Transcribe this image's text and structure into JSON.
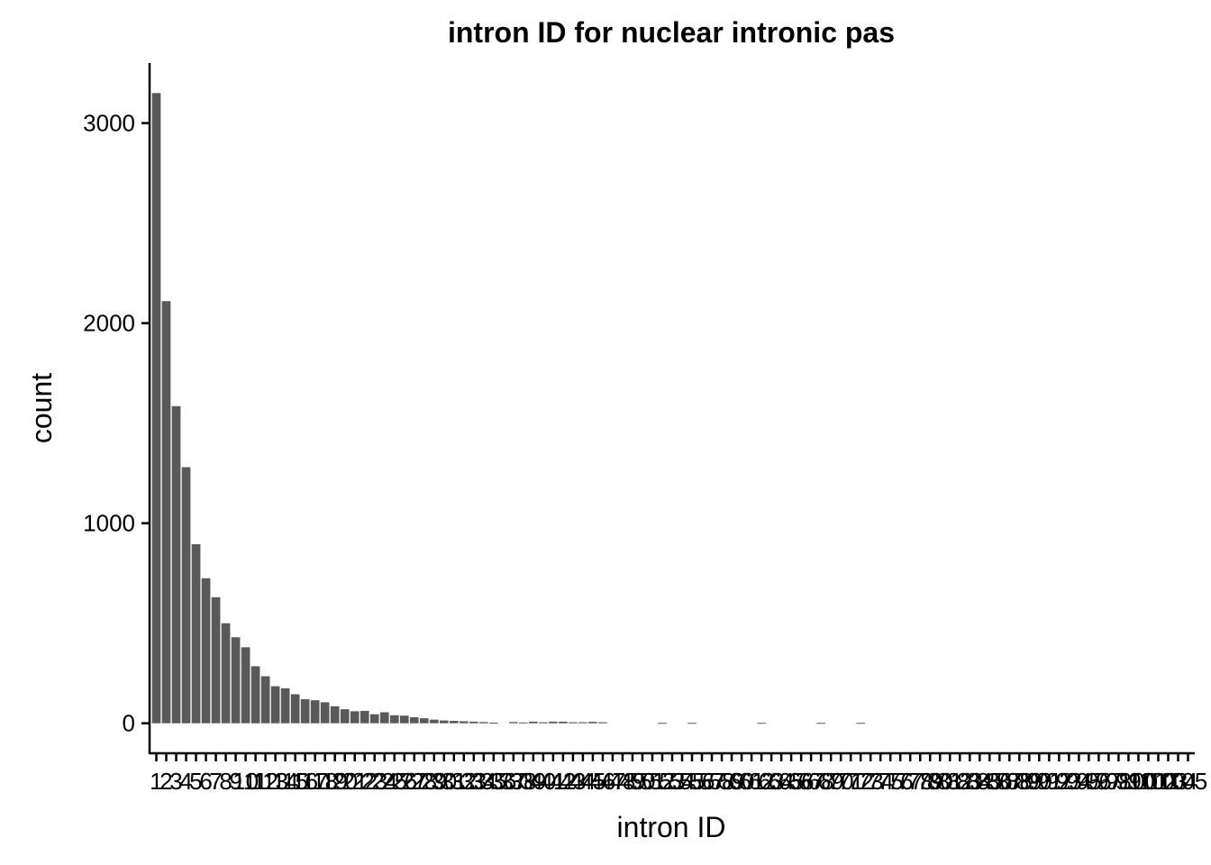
{
  "chart_data": {
    "type": "bar",
    "title": "intron ID for nuclear intronic pas",
    "xlabel": "intron ID",
    "ylabel": "count",
    "ylim": [
      -150,
      3300
    ],
    "yticks": [
      0,
      1000,
      2000,
      3000
    ],
    "categories": [
      "1",
      "2",
      "3",
      "4",
      "5",
      "6",
      "7",
      "8",
      "9",
      "10",
      "11",
      "12",
      "13",
      "14",
      "15",
      "16",
      "17",
      "18",
      "19",
      "20",
      "21",
      "22",
      "23",
      "24",
      "25",
      "26",
      "27",
      "28",
      "29",
      "30",
      "31",
      "32",
      "33",
      "34",
      "35",
      "36",
      "37",
      "38",
      "39",
      "40",
      "41",
      "42",
      "43",
      "44",
      "45",
      "46",
      "47",
      "48",
      "49",
      "50",
      "51",
      "52",
      "53",
      "54",
      "55",
      "56",
      "57",
      "58",
      "59",
      "60",
      "61",
      "62",
      "63",
      "64",
      "65",
      "66",
      "67",
      "68",
      "69",
      "70",
      "71",
      "72",
      "73",
      "74",
      "75",
      "76",
      "77",
      "78",
      "79",
      "80",
      "81",
      "82",
      "83",
      "84",
      "85",
      "86",
      "87",
      "88",
      "89",
      "90",
      "91",
      "92",
      "93",
      "94",
      "95",
      "96",
      "97",
      "98",
      "99",
      "100",
      "101",
      "102",
      "103",
      "104",
      "105"
    ],
    "values": [
      3150,
      2110,
      1585,
      1280,
      895,
      725,
      630,
      500,
      430,
      380,
      285,
      235,
      185,
      175,
      145,
      120,
      115,
      105,
      85,
      70,
      60,
      62,
      45,
      55,
      40,
      38,
      30,
      25,
      18,
      14,
      12,
      10,
      8,
      6,
      3,
      0,
      6,
      4,
      8,
      5,
      8,
      8,
      5,
      5,
      7,
      5,
      0,
      0,
      0,
      0,
      0,
      2,
      0,
      0,
      2,
      0,
      0,
      0,
      0,
      0,
      0,
      2,
      0,
      0,
      0,
      0,
      0,
      2,
      0,
      0,
      0,
      2,
      0,
      0,
      0,
      0,
      0,
      0,
      0,
      0,
      0,
      0,
      0,
      0,
      0,
      0,
      0,
      0,
      0,
      0,
      0,
      0,
      0,
      0,
      0,
      0,
      0,
      0,
      0,
      0,
      0,
      0,
      0,
      0,
      0
    ],
    "grid": false,
    "legend": "none"
  }
}
